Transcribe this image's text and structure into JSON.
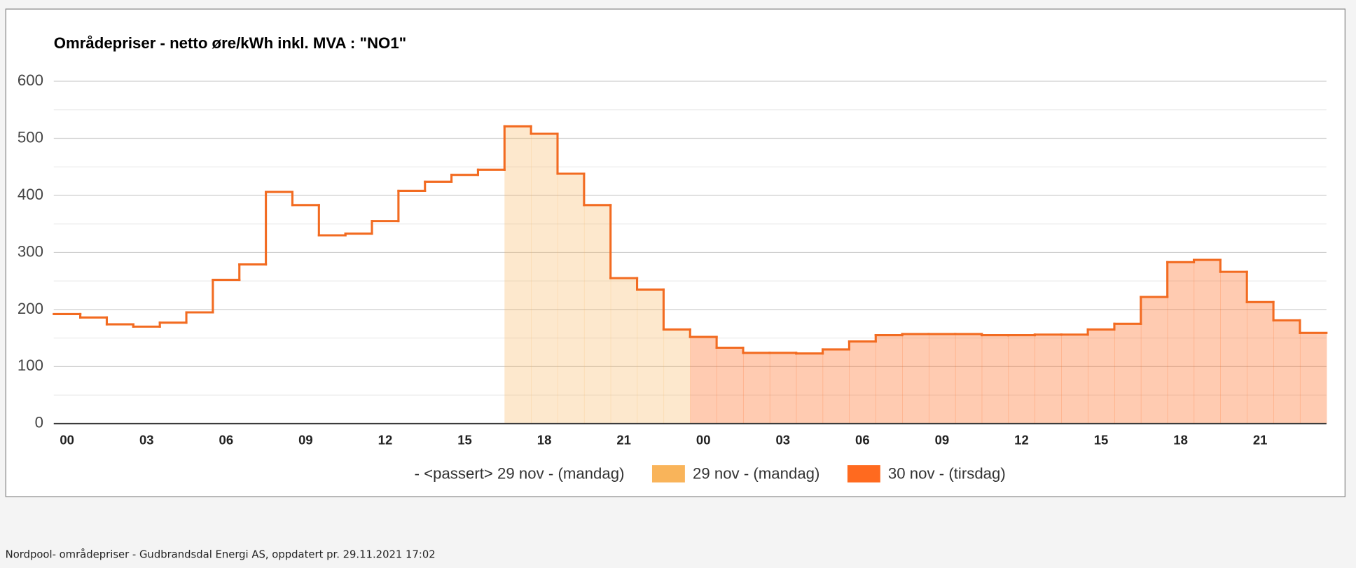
{
  "chart_data": {
    "type": "step",
    "title": "Områdepriser - netto øre/kWh inkl. MVA : \"NO1\"",
    "categories": [
      "00",
      null,
      null,
      "03",
      null,
      null,
      "06",
      null,
      null,
      "09",
      null,
      null,
      "12",
      null,
      null,
      "15",
      null,
      null,
      "18",
      null,
      null,
      "21",
      null,
      null,
      "00",
      null,
      null,
      "03",
      null,
      null,
      "06",
      null,
      null,
      "09",
      null,
      null,
      "12",
      null,
      null,
      "15",
      null,
      null,
      "18",
      null,
      null,
      "21",
      null,
      null
    ],
    "line_color": "#f26b21",
    "series": [
      {
        "name": "- <passert> 29 nov - (mandag)",
        "values": [
          192,
          186,
          174,
          170,
          177,
          195,
          252,
          279,
          406,
          383,
          330,
          333,
          355,
          408,
          424,
          436,
          445,
          null,
          null,
          null,
          null,
          null,
          null,
          null,
          null,
          null,
          null,
          null,
          null,
          null,
          null,
          null,
          null,
          null,
          null,
          null,
          null,
          null,
          null,
          null,
          null,
          null,
          null,
          null,
          null,
          null,
          null,
          null
        ]
      },
      {
        "name": "29 nov - (mandag)",
        "color": "#f9b45a",
        "values": [
          null,
          null,
          null,
          null,
          null,
          null,
          null,
          null,
          null,
          null,
          null,
          null,
          null,
          null,
          null,
          null,
          null,
          521,
          508,
          438,
          383,
          255,
          235,
          165,
          null,
          null,
          null,
          null,
          null,
          null,
          null,
          null,
          null,
          null,
          null,
          null,
          null,
          null,
          null,
          null,
          null,
          null,
          null,
          null,
          null,
          null,
          null,
          null
        ]
      },
      {
        "name": "30 nov - (tirsdag)",
        "color": "#ff6a1f",
        "values": [
          null,
          null,
          null,
          null,
          null,
          null,
          null,
          null,
          null,
          null,
          null,
          null,
          null,
          null,
          null,
          null,
          null,
          null,
          null,
          null,
          null,
          null,
          null,
          null,
          152,
          133,
          124,
          124,
          123,
          130,
          144,
          155,
          157,
          157,
          157,
          155,
          155,
          156,
          156,
          165,
          175,
          222,
          283,
          287,
          266,
          213,
          181,
          159
        ]
      }
    ],
    "ylim": [
      0,
      600
    ],
    "yticks": [
      0,
      100,
      200,
      300,
      400,
      500,
      600
    ],
    "grid": true
  },
  "footer": "Nordpool- områdepriser - Gudbrandsdal Energi AS, oppdatert pr. 29.11.2021 17:02"
}
